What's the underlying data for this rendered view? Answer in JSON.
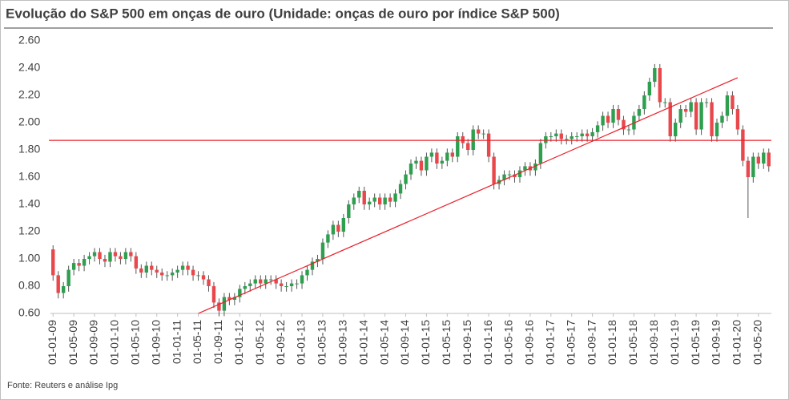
{
  "chart_data": {
    "type": "candlestick",
    "title": "Evolução do S&P 500 em onças de ouro (Unidade: onças de ouro por índice S&P 500)",
    "source": "Fonte: Reuters e análise Ipg",
    "up_color": "#2e9e4f",
    "down_color": "#e8474c",
    "ylim": [
      0.6,
      2.6
    ],
    "yticks": [
      {
        "value": 0.6,
        "label": "0.60"
      },
      {
        "value": 0.8,
        "label": "0.80"
      },
      {
        "value": 1.0,
        "label": "1.00"
      },
      {
        "value": 1.2,
        "label": "1.20"
      },
      {
        "value": 1.4,
        "label": "1.40"
      },
      {
        "value": 1.6,
        "label": "1.60"
      },
      {
        "value": 1.8,
        "label": "1.80"
      },
      {
        "value": 2.0,
        "label": "2.00"
      },
      {
        "value": 2.2,
        "label": "2.20"
      },
      {
        "value": 2.4,
        "label": "2.40"
      },
      {
        "value": 2.6,
        "label": "2.60"
      }
    ],
    "reference_line": {
      "value": 1.87,
      "color": "#e8202a"
    },
    "trend_line": {
      "x": [
        "01-05-11",
        "01-01-20"
      ],
      "y": [
        0.6,
        2.33
      ],
      "color": "#e8202a"
    },
    "categories": [
      "01-01-09",
      null,
      null,
      null,
      "01-05-09",
      null,
      null,
      null,
      "01-09-09",
      null,
      null,
      null,
      "01-01-10",
      null,
      null,
      null,
      "01-05-10",
      null,
      null,
      null,
      "01-09-10",
      null,
      null,
      null,
      "01-01-11",
      null,
      null,
      null,
      "01-05-11",
      null,
      null,
      null,
      "01-09-11",
      null,
      null,
      null,
      "01-01-12",
      null,
      null,
      null,
      "01-05-12",
      null,
      null,
      null,
      "01-09-12",
      null,
      null,
      null,
      "01-01-13",
      null,
      null,
      null,
      "01-05-13",
      null,
      null,
      null,
      "01-09-13",
      null,
      null,
      null,
      "01-01-14",
      null,
      null,
      null,
      "01-05-14",
      null,
      null,
      null,
      "01-09-14",
      null,
      null,
      null,
      "01-01-15",
      null,
      null,
      null,
      "01-05-15",
      null,
      null,
      null,
      "01-09-15",
      null,
      null,
      null,
      "01-01-16",
      null,
      null,
      null,
      "01-05-16",
      null,
      null,
      null,
      "01-09-16",
      null,
      null,
      null,
      "01-01-17",
      null,
      null,
      null,
      "01-05-17",
      null,
      null,
      null,
      "01-09-17",
      null,
      null,
      null,
      "01-01-18",
      null,
      null,
      null,
      "01-05-18",
      null,
      null,
      null,
      "01-09-18",
      null,
      null,
      null,
      "01-01-19",
      null,
      null,
      null,
      "01-05-19",
      null,
      null,
      null,
      "01-09-19",
      null,
      null,
      null,
      "01-01-20",
      null,
      null,
      null,
      "01-05-20",
      null,
      null
    ],
    "open": [
      1.07,
      0.88,
      0.75,
      0.8,
      0.92,
      0.97,
      0.95,
      1.0,
      1.02,
      1.05,
      1.0,
      0.98,
      1.05,
      1.02,
      1.0,
      1.05,
      1.02,
      0.93,
      0.9,
      0.95,
      0.92,
      0.9,
      0.88,
      0.88,
      0.9,
      0.92,
      0.95,
      0.92,
      0.88,
      0.88,
      0.85,
      0.8,
      0.68,
      0.62,
      0.72,
      0.7,
      0.72,
      0.78,
      0.8,
      0.82,
      0.85,
      0.82,
      0.85,
      0.85,
      0.82,
      0.8,
      0.8,
      0.82,
      0.82,
      0.88,
      0.92,
      0.98,
      1.0,
      1.12,
      1.18,
      1.25,
      1.2,
      1.3,
      1.4,
      1.45,
      1.5,
      1.4,
      1.42,
      1.45,
      1.4,
      1.45,
      1.42,
      1.48,
      1.55,
      1.62,
      1.7,
      1.72,
      1.65,
      1.75,
      1.78,
      1.7,
      1.72,
      1.78,
      1.75,
      1.9,
      1.85,
      1.8,
      1.95,
      1.92,
      1.92,
      1.75,
      1.55,
      1.58,
      1.62,
      1.62,
      1.6,
      1.65,
      1.68,
      1.65,
      1.7,
      1.85,
      1.9,
      1.9,
      1.92,
      1.88,
      1.88,
      1.9,
      1.9,
      1.92,
      1.9,
      1.93,
      1.98,
      2.05,
      2.0,
      2.1,
      2.02,
      1.95,
      1.95,
      2.05,
      2.1,
      2.2,
      2.3,
      2.4,
      2.15,
      2.15,
      1.9,
      2.0,
      2.1,
      2.08,
      2.15,
      1.95,
      2.15,
      2.15,
      1.9,
      2.0,
      2.05,
      2.2,
      2.1,
      1.95,
      1.72,
      1.6,
      1.75,
      1.7,
      1.78
    ],
    "high": [
      1.1,
      0.91,
      0.83,
      0.95,
      1.0,
      1.0,
      1.03,
      1.05,
      1.08,
      1.08,
      1.03,
      1.08,
      1.08,
      1.05,
      1.08,
      1.08,
      1.05,
      0.96,
      0.98,
      0.98,
      0.95,
      0.93,
      0.91,
      0.93,
      0.95,
      0.98,
      0.98,
      0.95,
      0.91,
      0.91,
      0.88,
      0.83,
      0.71,
      0.75,
      0.75,
      0.75,
      0.81,
      0.83,
      0.85,
      0.88,
      0.88,
      0.88,
      0.88,
      0.88,
      0.85,
      0.83,
      0.85,
      0.85,
      0.91,
      0.95,
      1.01,
      1.03,
      1.15,
      1.21,
      1.28,
      1.28,
      1.33,
      1.43,
      1.48,
      1.53,
      1.53,
      1.45,
      1.48,
      1.48,
      1.48,
      1.48,
      1.51,
      1.58,
      1.65,
      1.73,
      1.75,
      1.75,
      1.78,
      1.81,
      1.81,
      1.75,
      1.81,
      1.81,
      1.93,
      1.93,
      1.88,
      1.98,
      1.98,
      1.95,
      1.95,
      1.78,
      1.61,
      1.65,
      1.65,
      1.65,
      1.68,
      1.71,
      1.71,
      1.73,
      1.88,
      1.93,
      1.93,
      1.95,
      1.95,
      1.91,
      1.93,
      1.93,
      1.95,
      1.95,
      1.96,
      2.01,
      2.08,
      2.08,
      2.13,
      2.13,
      2.05,
      1.98,
      2.08,
      2.13,
      2.23,
      2.33,
      2.43,
      2.43,
      2.18,
      2.18,
      2.03,
      2.13,
      2.13,
      2.18,
      2.18,
      2.18,
      2.18,
      2.18,
      2.03,
      2.08,
      2.23,
      2.23,
      2.13,
      1.98,
      1.75,
      1.78,
      1.78,
      1.81,
      1.81
    ],
    "low": [
      0.84,
      0.71,
      0.71,
      0.76,
      0.88,
      0.91,
      0.91,
      0.96,
      0.98,
      0.96,
      0.94,
      0.94,
      0.98,
      0.96,
      0.96,
      0.98,
      0.89,
      0.86,
      0.86,
      0.88,
      0.86,
      0.84,
      0.84,
      0.84,
      0.86,
      0.88,
      0.88,
      0.84,
      0.84,
      0.81,
      0.76,
      0.64,
      0.58,
      0.58,
      0.66,
      0.66,
      0.68,
      0.74,
      0.76,
      0.78,
      0.78,
      0.78,
      0.81,
      0.78,
      0.76,
      0.76,
      0.76,
      0.78,
      0.78,
      0.84,
      0.88,
      0.94,
      0.96,
      1.08,
      1.14,
      1.16,
      1.16,
      1.26,
      1.36,
      1.41,
      1.36,
      1.36,
      1.38,
      1.36,
      1.36,
      1.38,
      1.38,
      1.44,
      1.51,
      1.58,
      1.66,
      1.61,
      1.61,
      1.71,
      1.66,
      1.66,
      1.68,
      1.71,
      1.71,
      1.81,
      1.76,
      1.76,
      1.88,
      1.88,
      1.71,
      1.51,
      1.51,
      1.54,
      1.58,
      1.56,
      1.56,
      1.61,
      1.61,
      1.61,
      1.66,
      1.81,
      1.86,
      1.86,
      1.84,
      1.84,
      1.84,
      1.86,
      1.86,
      1.86,
      1.86,
      1.89,
      1.94,
      1.96,
      1.96,
      1.98,
      1.91,
      1.91,
      1.91,
      2.01,
      2.06,
      2.16,
      2.26,
      2.11,
      2.11,
      1.86,
      1.86,
      1.96,
      2.04,
      2.04,
      1.91,
      1.91,
      2.11,
      1.86,
      1.86,
      1.96,
      2.01,
      2.06,
      1.91,
      1.68,
      1.3,
      1.56,
      1.66,
      1.66,
      1.64
    ],
    "close": [
      0.88,
      0.75,
      0.8,
      0.92,
      0.97,
      0.95,
      1.0,
      1.02,
      1.05,
      1.0,
      0.98,
      1.05,
      1.02,
      1.0,
      1.05,
      1.02,
      0.93,
      0.9,
      0.95,
      0.92,
      0.9,
      0.88,
      0.88,
      0.9,
      0.92,
      0.95,
      0.92,
      0.88,
      0.88,
      0.85,
      0.8,
      0.68,
      0.62,
      0.72,
      0.7,
      0.72,
      0.78,
      0.8,
      0.82,
      0.85,
      0.82,
      0.85,
      0.85,
      0.82,
      0.8,
      0.8,
      0.82,
      0.82,
      0.88,
      0.92,
      0.98,
      1.0,
      1.12,
      1.18,
      1.25,
      1.2,
      1.3,
      1.4,
      1.45,
      1.5,
      1.4,
      1.42,
      1.45,
      1.4,
      1.45,
      1.42,
      1.48,
      1.55,
      1.62,
      1.7,
      1.72,
      1.65,
      1.75,
      1.78,
      1.7,
      1.72,
      1.78,
      1.75,
      1.9,
      1.85,
      1.8,
      1.95,
      1.92,
      1.92,
      1.75,
      1.55,
      1.58,
      1.62,
      1.62,
      1.6,
      1.65,
      1.68,
      1.65,
      1.7,
      1.85,
      1.9,
      1.9,
      1.92,
      1.88,
      1.88,
      1.9,
      1.9,
      1.92,
      1.9,
      1.93,
      1.98,
      2.05,
      2.0,
      2.1,
      2.02,
      1.95,
      1.95,
      2.05,
      2.1,
      2.2,
      2.3,
      2.4,
      2.15,
      2.15,
      1.9,
      2.0,
      2.1,
      2.08,
      2.15,
      1.95,
      2.15,
      2.15,
      1.9,
      2.0,
      2.05,
      2.2,
      2.1,
      1.95,
      1.72,
      1.6,
      1.75,
      1.7,
      1.78,
      1.68
    ]
  }
}
